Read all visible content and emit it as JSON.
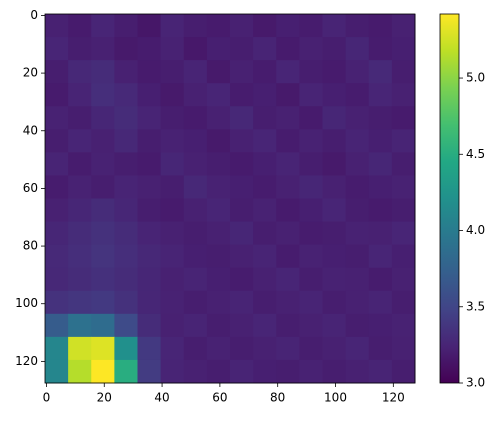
{
  "chart_data": {
    "type": "heatmap",
    "colormap": "viridis",
    "z": [
      [
        3.22,
        3.18,
        3.25,
        3.2,
        3.15,
        3.24,
        3.2,
        3.18,
        3.22,
        3.17,
        3.21,
        3.19,
        3.24,
        3.2,
        3.18,
        3.22
      ],
      [
        3.25,
        3.2,
        3.22,
        3.17,
        3.19,
        3.23,
        3.16,
        3.21,
        3.2,
        3.24,
        3.18,
        3.22,
        3.2,
        3.26,
        3.19,
        3.21
      ],
      [
        3.2,
        3.27,
        3.3,
        3.22,
        3.18,
        3.2,
        3.24,
        3.17,
        3.22,
        3.19,
        3.25,
        3.2,
        3.18,
        3.23,
        3.28,
        3.2
      ],
      [
        3.18,
        3.24,
        3.32,
        3.28,
        3.21,
        3.17,
        3.22,
        3.25,
        3.19,
        3.21,
        3.17,
        3.24,
        3.21,
        3.19,
        3.25,
        3.22
      ],
      [
        3.23,
        3.2,
        3.26,
        3.3,
        3.24,
        3.2,
        3.18,
        3.22,
        3.27,
        3.2,
        3.22,
        3.18,
        3.26,
        3.22,
        3.2,
        3.18
      ],
      [
        3.2,
        3.25,
        3.22,
        3.27,
        3.2,
        3.23,
        3.21,
        3.17,
        3.22,
        3.25,
        3.19,
        3.23,
        3.2,
        3.24,
        3.21,
        3.24
      ],
      [
        3.24,
        3.19,
        3.23,
        3.2,
        3.18,
        3.26,
        3.22,
        3.2,
        3.18,
        3.21,
        3.24,
        3.2,
        3.17,
        3.22,
        3.26,
        3.2
      ],
      [
        3.19,
        3.23,
        3.2,
        3.24,
        3.22,
        3.2,
        3.27,
        3.23,
        3.21,
        3.19,
        3.22,
        3.26,
        3.22,
        3.19,
        3.21,
        3.23
      ],
      [
        3.22,
        3.26,
        3.3,
        3.26,
        3.2,
        3.18,
        3.22,
        3.25,
        3.2,
        3.23,
        3.18,
        3.21,
        3.25,
        3.2,
        3.18,
        3.2
      ],
      [
        3.26,
        3.3,
        3.34,
        3.3,
        3.24,
        3.22,
        3.2,
        3.22,
        3.26,
        3.2,
        3.22,
        3.19,
        3.2,
        3.23,
        3.22,
        3.25
      ],
      [
        3.28,
        3.32,
        3.36,
        3.32,
        3.27,
        3.24,
        3.21,
        3.2,
        3.22,
        3.24,
        3.19,
        3.23,
        3.21,
        3.2,
        3.25,
        3.21
      ],
      [
        3.27,
        3.3,
        3.33,
        3.3,
        3.26,
        3.22,
        3.24,
        3.21,
        3.19,
        3.22,
        3.25,
        3.2,
        3.23,
        3.22,
        3.19,
        3.22
      ],
      [
        3.35,
        3.38,
        3.4,
        3.34,
        3.26,
        3.23,
        3.2,
        3.22,
        3.24,
        3.2,
        3.22,
        3.24,
        3.2,
        3.22,
        3.24,
        3.2
      ],
      [
        3.7,
        3.9,
        3.85,
        3.55,
        3.3,
        3.22,
        3.24,
        3.2,
        3.22,
        3.25,
        3.2,
        3.22,
        3.24,
        3.2,
        3.21,
        3.23
      ],
      [
        4.1,
        5.25,
        5.3,
        4.2,
        3.4,
        3.25,
        3.2,
        3.23,
        3.2,
        3.22,
        3.24,
        3.2,
        3.22,
        3.25,
        3.2,
        3.22
      ],
      [
        4.1,
        5.15,
        5.42,
        4.5,
        3.42,
        3.24,
        3.22,
        3.2,
        3.24,
        3.21,
        3.2,
        3.23,
        3.2,
        3.22,
        3.24,
        3.2
      ]
    ],
    "xlim": [
      -0.5,
      127.5
    ],
    "ylim": [
      127.5,
      -0.5
    ],
    "xticks": [
      0,
      20,
      40,
      60,
      80,
      100,
      120
    ],
    "yticks": [
      0,
      20,
      40,
      60,
      80,
      100,
      120
    ],
    "clim": [
      3.0,
      5.42
    ],
    "cticks": [
      {
        "value": 3,
        "label": "3.0"
      },
      {
        "value": 3.5,
        "label": "3.5"
      },
      {
        "value": 4,
        "label": "4.0"
      },
      {
        "value": 4.5,
        "label": "4.5"
      },
      {
        "value": 5,
        "label": "5.0"
      }
    ]
  }
}
